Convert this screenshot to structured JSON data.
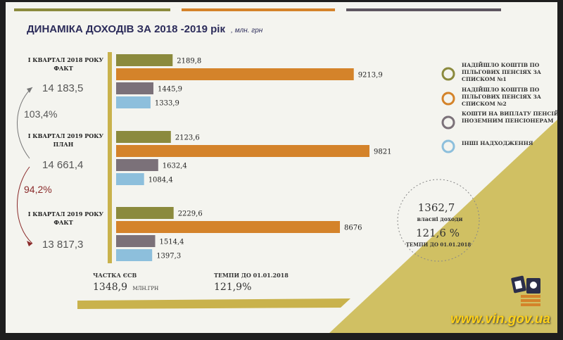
{
  "colors": {
    "olive": "#8b8a3d",
    "orange": "#d4832a",
    "gray": "#7b7179",
    "blue": "#8dbfdc",
    "gold": "#c9b24c",
    "background": "#f4f4ef"
  },
  "watermark": "www.vin.gov.ua",
  "chart_data": {
    "type": "bar",
    "orientation": "horizontal",
    "title": "ДИНАМІКА ДОХОДІВ ЗА 2018 -2019 рік",
    "title_unit": ", млн. грн",
    "groups": [
      {
        "label_line1": "І КВАРТАЛ 2018 РОКУ",
        "label_line2": "ФАКТ",
        "total": "14 183,5"
      },
      {
        "label_line1": "І КВАРТАЛ 2019 РОКУ",
        "label_line2": "ПЛАН",
        "total": "14 661,4"
      },
      {
        "label_line1": "І КВАРТАЛ 2019 РОКУ",
        "label_line2": "ФАКТ",
        "total": "13 817,3"
      }
    ],
    "series": [
      {
        "name_lines": [
          "НАДІЙШЛО КОШТІВ ПО",
          "ПІЛЬГОВИХ ПЕНСІЯХ ЗА",
          "СПИСКОМ №1"
        ],
        "color": "#8b8a3d",
        "values": [
          2189.8,
          2123.6,
          2229.6
        ],
        "labels": [
          "2189,8",
          "2123,6",
          "2229,6"
        ]
      },
      {
        "name_lines": [
          "НАДІЙШЛО КОШТІВ ПО",
          "ПІЛЬГОВИХ ПЕНСІЯХ ЗА",
          "СПИСКОМ №2"
        ],
        "color": "#d4832a",
        "values": [
          9213.9,
          9821,
          8676
        ],
        "labels": [
          "9213,9",
          "9821",
          "8676"
        ]
      },
      {
        "name_lines": [
          "КОШТИ НА ВИПЛАТУ ПЕНСІЙ",
          "ІНОЗЕМНИМ ПЕНСІОНЕРАМ"
        ],
        "color": "#7b7179",
        "values": [
          1445.9,
          1632.4,
          1514.4
        ],
        "labels": [
          "1445,9",
          "1632,4",
          "1514,4"
        ]
      },
      {
        "name_lines": [
          "ІНШІ НАДХОДЖЕННЯ"
        ],
        "color": "#8dbfdc",
        "values": [
          1333.9,
          1084.4,
          1397.3
        ],
        "labels": [
          "1333,9",
          "1084,4",
          "1397,3"
        ]
      }
    ],
    "growth": [
      {
        "value": "103,4%",
        "color": "#555555"
      },
      {
        "value": "94,2%",
        "color": "#8a2a2a"
      }
    ],
    "bottom": {
      "share_label": "ЧАСТКА ЄСВ",
      "share_value": "1348,9",
      "share_unit": "МЛН.ГРН",
      "tempo_label": "ТЕМПИ ДО 01.01.2018",
      "tempo_value": "121,9%"
    },
    "circle": {
      "value": "1362,7",
      "label": "власні доходи",
      "pct": "121,6 %",
      "pct_label": "ТЕМПИ ДО 01.01.2018"
    },
    "legend_position": "right",
    "grid": false
  }
}
